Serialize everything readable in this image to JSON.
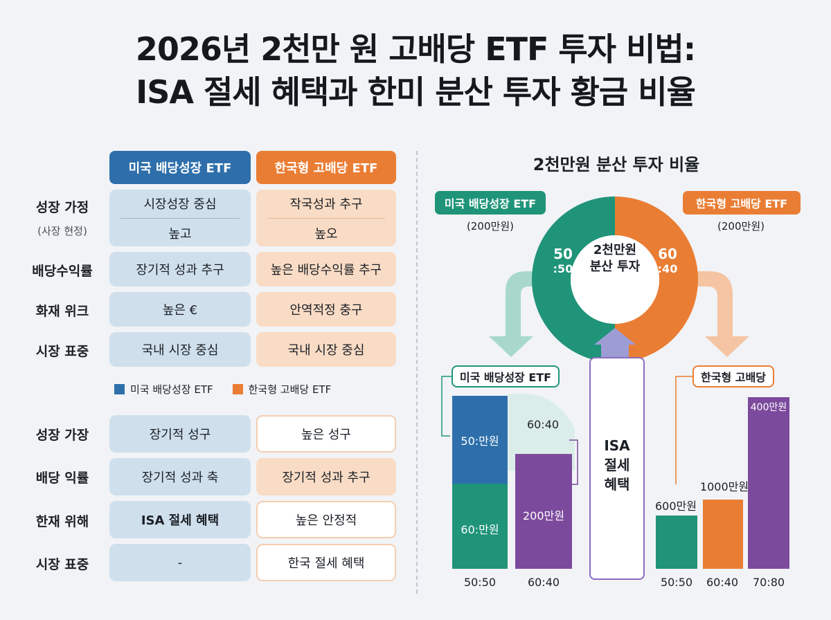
{
  "title": {
    "line1": "2026년 2천만 원 고배당 ETF 투자 비법:",
    "line2": "ISA 절세 혜택과 한미 분산 투자 황금 비율"
  },
  "table": {
    "headers": {
      "us": "미국 배당성장 ETF",
      "kr": "한국형 고배당 ETF"
    },
    "rows_top": [
      {
        "label": "성장 가정",
        "sublabel": "(사장 현정)",
        "us_top": "시장성장 중심",
        "us_bottom": "높고",
        "kr_top": "작국성과 추구",
        "kr_bottom": "높오"
      },
      {
        "label": "배당수익률",
        "us": "장기적 성과 추구",
        "kr": "높은 배당수익률 추구"
      },
      {
        "label": "화재 위크",
        "us": "높은 €",
        "kr": "안역적정 충구"
      },
      {
        "label": "시장 표중",
        "us": "국내 시장 중심",
        "kr": "국내 시장 중심"
      }
    ],
    "legend": {
      "us": "미국 배당성장 ETF",
      "kr": "한국형 고배당 ETF"
    },
    "rows_bottom": [
      {
        "label": "성장 가장",
        "us": "장기적 성구",
        "kr": "높은 성구"
      },
      {
        "label": "배당 익률",
        "us": "장기적 성과 축",
        "kr": "장기적 성과 추구"
      },
      {
        "label": "한재 위해",
        "us": "ISA 절세 혜택",
        "kr": "높은 안정적"
      },
      {
        "label": "시장 표중",
        "us": "-",
        "kr": "한국 절세 혜택"
      }
    ]
  },
  "right": {
    "title": "2천만원 분산 투자 비율",
    "pill_us": "미국 배당성장 ETF",
    "pill_kr": "한국형 고배당 ETF",
    "amount_us": "(200만원)",
    "amount_kr": "(200만원)",
    "donut_center_line1": "2천만원",
    "donut_center_line2": "분산 투자",
    "ratio_left_line1": "50",
    "ratio_left_line2": ":50",
    "ratio_right_line1": "60",
    "ratio_right_line2": ":40",
    "isa_line1": "ISA",
    "isa_line2": "절세",
    "isa_line3": "혜택",
    "tag_us": "미국 배당성장 ETF",
    "tag_kr": "한국형 고배당"
  },
  "chart_data": [
    {
      "type": "bar",
      "categories": [
        "50:50",
        "60:40"
      ],
      "bar_labels": {
        "top_blue": "50:만원",
        "bottom_green": "60:만원",
        "ratio": "60:40",
        "purple": "200만원"
      },
      "series": [
        {
          "values": [
            50,
            0
          ]
        },
        {
          "values": [
            60,
            0
          ]
        },
        {
          "values": [
            0,
            200
          ]
        }
      ]
    },
    {
      "type": "bar",
      "categories": [
        "50:50",
        "60:40",
        "70:80"
      ],
      "values": [
        600,
        1000,
        400
      ],
      "value_labels": [
        "600만원",
        "1000만원",
        "400만원"
      ]
    }
  ],
  "colors": {
    "us_blue": "#2e6fab",
    "kr_orange": "#ea7d34",
    "green": "#1f9479",
    "purple": "#7c4a9d"
  }
}
